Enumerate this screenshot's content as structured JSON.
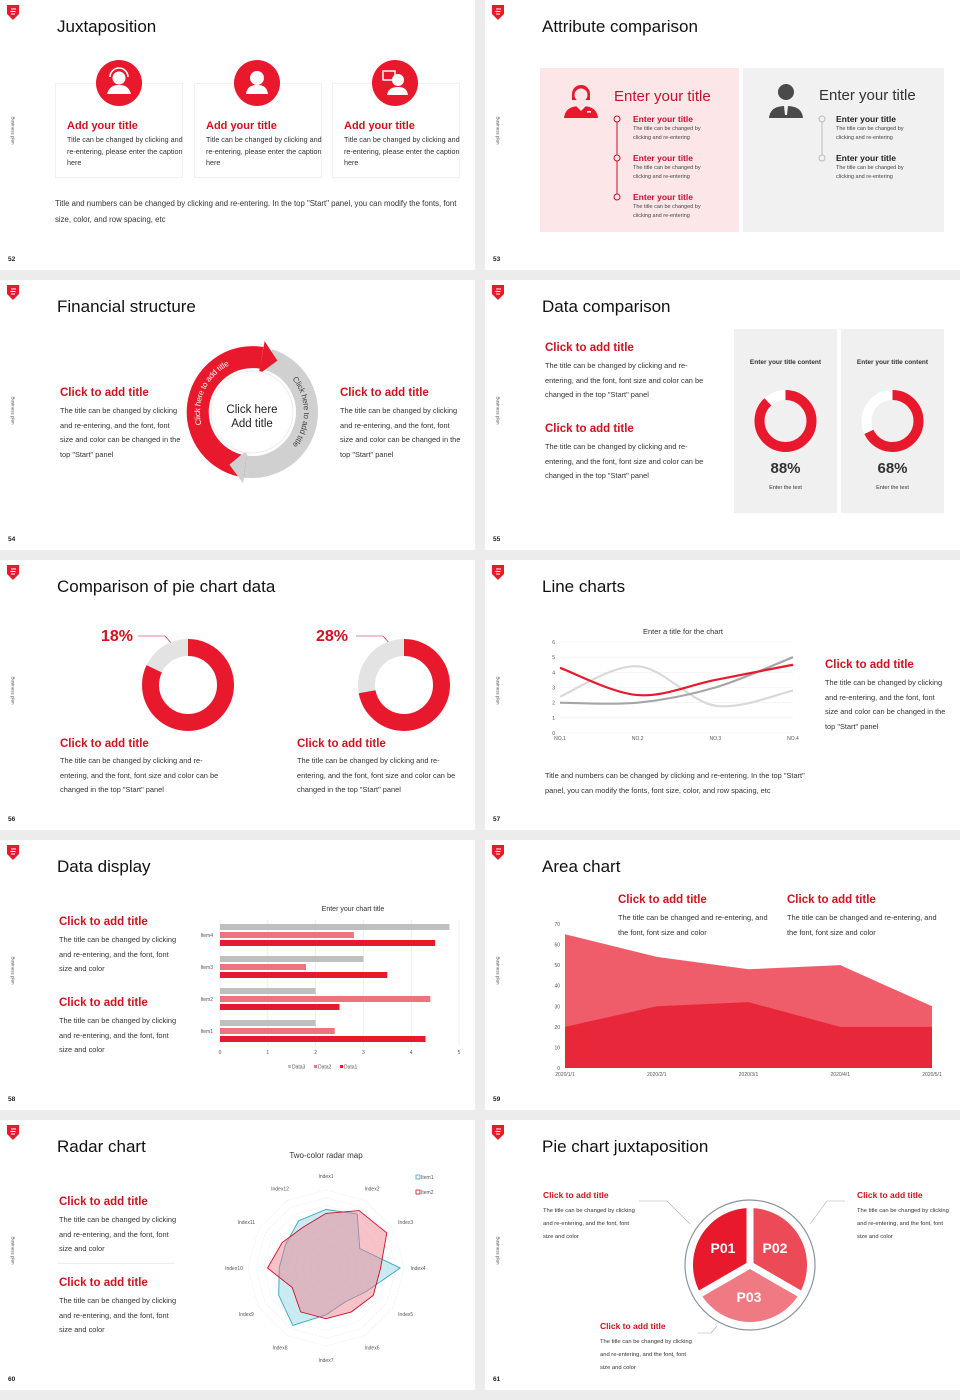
{
  "common": {
    "side_label": "Business plan",
    "brand_color": "#e8192c"
  },
  "slides": [
    {
      "page": "52",
      "title": "Juxtaposition",
      "cards": [
        {
          "title": "Add your title",
          "text": "Title can be changed by clicking and re-entering, please enter the caption here",
          "icon": "customer-service-icon"
        },
        {
          "title": "Add your title",
          "text": "Title can be changed by clicking and re-entering, please enter the caption here",
          "icon": "person-icon"
        },
        {
          "title": "Add your title",
          "text": "Title can be changed by clicking and re-entering, please enter the caption here",
          "icon": "presenter-icon"
        }
      ],
      "footer": "Title and numbers can be changed by clicking and re-entering. In the top \"Start\" panel, you can modify the fonts, font size, color, and row spacing, etc"
    },
    {
      "page": "53",
      "title": "Attribute comparison",
      "left": {
        "heading": "Enter your title",
        "items": [
          {
            "title": "Enter your title",
            "text": "The title can be changed by clicking and re-entering"
          },
          {
            "title": "Enter your title",
            "text": "The title can be changed by clicking and re-entering"
          },
          {
            "title": "Enter your title",
            "text": "The title can be changed by clicking and re-entering"
          }
        ]
      },
      "right": {
        "heading": "Enter your title",
        "items": [
          {
            "title": "Enter your title",
            "text": "The title can be changed by clicking and re-entering"
          },
          {
            "title": "Enter your title",
            "text": "The title can be changed by clicking and re-entering"
          }
        ]
      }
    },
    {
      "page": "54",
      "title": "Financial structure",
      "left": {
        "title": "Click to add title",
        "text": "The title can be changed by clicking and re-entering, and the font, font size and color can be changed in the top \"Start\" panel"
      },
      "right": {
        "title": "Click to add title",
        "text": "The title can be changed by clicking and re-entering, and the font, font size and color can be changed in the top \"Start\" panel"
      },
      "center_line1": "Click here",
      "center_line2": "Add title",
      "arc_left": "Click here to add title",
      "arc_right": "Click here to add title"
    },
    {
      "page": "55",
      "title": "Data comparison",
      "blocks": [
        {
          "title": "Click to add title",
          "text": "The title can be changed by clicking and re-entering, and the font, font size and color can be changed in the top \"Start\" panel"
        },
        {
          "title": "Click to add title",
          "text": "The title can be changed by clicking and re-entering, and the font, font size and color can be changed in the top \"Start\" panel"
        }
      ],
      "panels": [
        {
          "header": "Enter your title content",
          "value_label": "88%",
          "value": 88,
          "caption": "Enter the text"
        },
        {
          "header": "Enter your title content",
          "value_label": "68%",
          "value": 68,
          "caption": "Enter the text"
        }
      ]
    },
    {
      "page": "56",
      "title": "Comparison of pie chart data",
      "pies": [
        {
          "label": "18%",
          "value": 18,
          "title": "Click to add title",
          "text": "The title can be changed by clicking and re-entering, and the font, font size and color can be changed in the top \"Start\" panel"
        },
        {
          "label": "28%",
          "value": 28,
          "title": "Click to add title",
          "text": "The title can be changed by clicking and re-entering, and the font, font size and color can be changed in the top \"Start\" panel"
        }
      ]
    },
    {
      "page": "57",
      "title": "Line charts",
      "side": {
        "title": "Click to add title",
        "text": "The title can be changed by clicking and re-entering, and the font, font size and color can be changed in the top \"Start\" panel"
      },
      "footer": "Title and numbers can be changed by clicking and re-entering. In the top \"Start\" panel, you can modify the fonts, font size, color, and row spacing, etc"
    },
    {
      "page": "58",
      "title": "Data display",
      "blocks": [
        {
          "title": "Click to add title",
          "text": "The title can be changed by clicking and re-entering, and the font, font size and color"
        },
        {
          "title": "Click to add title",
          "text": "The title can be changed by clicking and re-entering, and the font, font size and color"
        }
      ]
    },
    {
      "page": "59",
      "title": "Area chart",
      "blocks": [
        {
          "title": "Click to add title",
          "text": "The title can be changed and re-entering, and the font, font size and color"
        },
        {
          "title": "Click to add title",
          "text": "The title can be changed and re-entering, and the font, font size and color"
        }
      ]
    },
    {
      "page": "60",
      "title": "Radar chart",
      "blocks": [
        {
          "title": "Click to add title",
          "text": "The title can be changed by clicking and re-entering, and the font, font size and color"
        },
        {
          "title": "Click to add title",
          "text": "The title can be changed by clicking and re-entering, and the font, font size and color"
        }
      ]
    },
    {
      "page": "61",
      "title": "Pie chart juxtaposition",
      "slices": [
        "P01",
        "P02",
        "P03"
      ],
      "blocks": [
        {
          "title": "Click to add title",
          "text": "The title can be changed by clicking and re-entering, and the font, font size and color"
        },
        {
          "title": "Click to add title",
          "text": "The title can be changed by clicking and re-entering, and the font, font size and color"
        },
        {
          "title": "Click to add title",
          "text": "The title can be changed by clicking and re-entering, and the font, font size and color"
        }
      ]
    }
  ],
  "chart_data": [
    {
      "type": "line",
      "title": "Enter a title for the chart",
      "categories": [
        "NO.1",
        "NO.2",
        "NO.3",
        "NO.4"
      ],
      "ylim": [
        0,
        6
      ],
      "yticks": [
        "0",
        "1",
        "2",
        "3",
        "4",
        "5",
        "6"
      ],
      "grid": true,
      "series": [
        {
          "color": "#e8192c",
          "values": [
            4.3,
            2.5,
            3.5,
            4.5
          ]
        },
        {
          "color": "#d9d9d9",
          "values": [
            2.4,
            4.4,
            1.8,
            2.8
          ]
        },
        {
          "color": "#a6a6a6",
          "values": [
            2.0,
            2.0,
            3.0,
            5.0
          ]
        }
      ]
    },
    {
      "type": "bar",
      "orientation": "horizontal",
      "title": "Enter your chart title",
      "categories": [
        "Item1",
        "Item2",
        "Item3",
        "Item4"
      ],
      "xlim": [
        0,
        5
      ],
      "xticks": [
        "0",
        "1",
        "2",
        "3",
        "4",
        "5"
      ],
      "legend": "bottom",
      "series": [
        {
          "name": "Data3",
          "color": "#bfbfbf",
          "values": [
            2.0,
            2.0,
            3.0,
            4.8
          ]
        },
        {
          "name": "Data2",
          "color": "#f0727d",
          "values": [
            2.4,
            4.4,
            1.8,
            2.8
          ]
        },
        {
          "name": "Data1",
          "color": "#e8192c",
          "values": [
            4.3,
            2.5,
            3.5,
            4.5
          ]
        }
      ]
    },
    {
      "type": "area",
      "categories": [
        "2020/1/1",
        "2020/2/1",
        "2020/3/1",
        "2020/4/1",
        "2020/5/1"
      ],
      "ylim": [
        0,
        70
      ],
      "yticks": [
        "0",
        "10",
        "20",
        "30",
        "40",
        "50",
        "60",
        "70"
      ],
      "series": [
        {
          "color": "#ef5d6b",
          "values": [
            65,
            54,
            48,
            50,
            30
          ]
        },
        {
          "color": "#e8283a",
          "values": [
            20,
            30,
            32,
            20,
            20
          ]
        }
      ]
    },
    {
      "type": "radar",
      "title": "Two-color radar map",
      "legend": "top-right",
      "categories": [
        "Index1",
        "Index2",
        "Index3",
        "Index4",
        "Index5",
        "Index6",
        "Index7",
        "Index8",
        "Index9",
        "Index10",
        "Index11",
        "Index12"
      ],
      "series": [
        {
          "name": "Item1",
          "color": "#3aa6b9",
          "values": [
            7.5,
            8,
            5,
            9.5,
            6,
            5,
            6,
            8.5,
            7,
            6,
            6,
            7
          ]
        },
        {
          "name": "Item2",
          "color": "#c8102e",
          "values": [
            7,
            8.5,
            9,
            7,
            7,
            6.5,
            6.5,
            6.5,
            5,
            7.5,
            6.5,
            6
          ]
        }
      ]
    }
  ]
}
